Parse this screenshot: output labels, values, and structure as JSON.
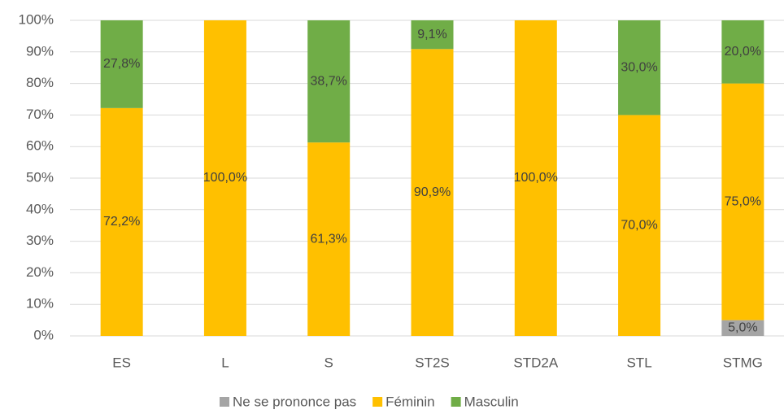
{
  "chart_data": {
    "type": "bar",
    "stacked": true,
    "categories": [
      "ES",
      "L",
      "S",
      "ST2S",
      "STD2A",
      "STL",
      "STMG"
    ],
    "series": [
      {
        "name": "Ne se prononce pas",
        "color": "#a5a5a5",
        "values": [
          0,
          0,
          0,
          0,
          0,
          0,
          5.0
        ],
        "value_labels": [
          null,
          null,
          null,
          null,
          null,
          null,
          "5,0%"
        ]
      },
      {
        "name": "Féminin",
        "color": "#ffc000",
        "values": [
          72.2,
          100.0,
          61.3,
          90.9,
          100.0,
          70.0,
          75.0
        ],
        "value_labels": [
          "72,2%",
          "100,0%",
          "61,3%",
          "90,9%",
          "100,0%",
          "70,0%",
          "75,0%"
        ]
      },
      {
        "name": "Masculin",
        "color": "#70ad47",
        "values": [
          27.8,
          0,
          38.7,
          9.1,
          0,
          30.0,
          20.0
        ],
        "value_labels": [
          "27,8%",
          null,
          "38,7%",
          "9,1%",
          null,
          "30,0%",
          "20,0%"
        ]
      }
    ],
    "ylim": [
      0,
      100
    ],
    "yticks": [
      {
        "value": 0,
        "label": "0%"
      },
      {
        "value": 10,
        "label": "10%"
      },
      {
        "value": 20,
        "label": "20%"
      },
      {
        "value": 30,
        "label": "30%"
      },
      {
        "value": 40,
        "label": "40%"
      },
      {
        "value": 50,
        "label": "50%"
      },
      {
        "value": 60,
        "label": "60%"
      },
      {
        "value": 70,
        "label": "70%"
      },
      {
        "value": 80,
        "label": "80%"
      },
      {
        "value": 90,
        "label": "90%"
      },
      {
        "value": 100,
        "label": "100%"
      }
    ],
    "grid": true,
    "legend": "bottom"
  }
}
